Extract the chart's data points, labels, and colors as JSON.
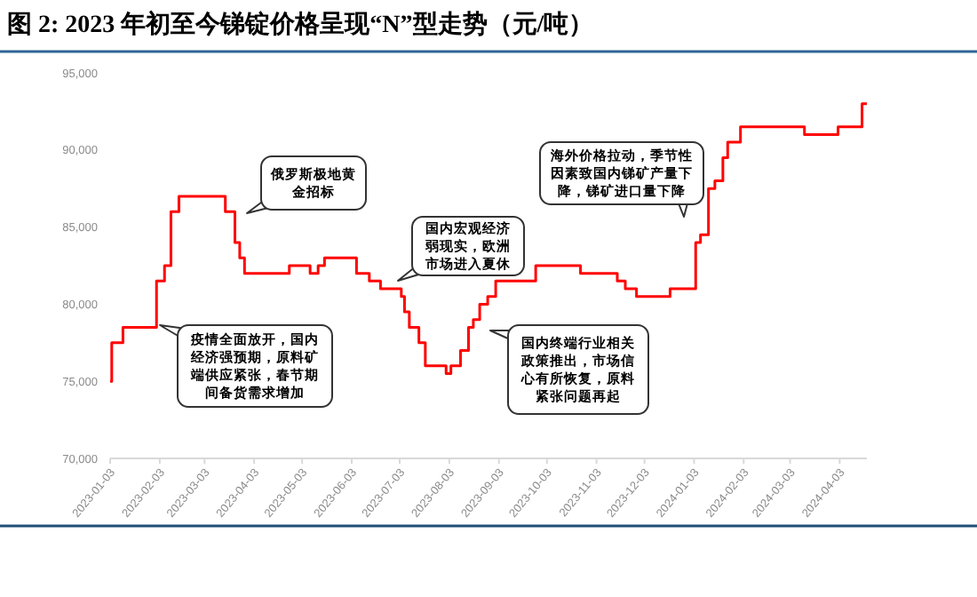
{
  "chart_data": {
    "type": "step",
    "title": "图 2: 2023 年初至今锑锭价格呈现“N”型走势（元/吨）",
    "x": [
      "2023-01-03",
      "2023-01-04",
      "2023-01-11",
      "2023-02-01",
      "2023-02-06",
      "2023-02-10",
      "2023-02-15",
      "2023-03-16",
      "2023-03-22",
      "2023-03-25",
      "2023-03-28",
      "2023-04-25",
      "2023-05-08",
      "2023-05-13",
      "2023-05-17",
      "2023-06-06",
      "2023-06-14",
      "2023-06-21",
      "2023-07-04",
      "2023-07-06",
      "2023-07-09",
      "2023-07-15",
      "2023-07-19",
      "2023-08-01",
      "2023-08-04",
      "2023-08-10",
      "2023-08-15",
      "2023-08-18",
      "2023-08-22",
      "2023-08-27",
      "2023-09-01",
      "2023-09-26",
      "2023-10-24",
      "2023-11-16",
      "2023-11-21",
      "2023-11-28",
      "2023-12-19",
      "2024-01-04",
      "2024-01-07",
      "2024-01-12",
      "2024-01-16",
      "2024-01-21",
      "2024-01-24",
      "2024-02-01",
      "2024-03-12",
      "2024-04-02",
      "2024-04-17",
      "2024-04-20"
    ],
    "series": [
      {
        "color": "#ff0000",
        "values": [
          75000,
          77500,
          78500,
          81500,
          82500,
          86000,
          87000,
          86000,
          84000,
          83000,
          82000,
          82500,
          82000,
          82500,
          83000,
          82000,
          81500,
          81000,
          80500,
          79500,
          78500,
          77500,
          76000,
          75500,
          76000,
          77000,
          78500,
          79000,
          80000,
          80500,
          81500,
          82500,
          82000,
          81500,
          81000,
          80500,
          81000,
          84000,
          84500,
          87500,
          88000,
          89500,
          90500,
          91500,
          91000,
          91500,
          93000,
          93000
        ]
      }
    ],
    "xlim": [
      "2023-01-03",
      "2024-04-20"
    ],
    "xticks": [
      {
        "value": "2023-01-03",
        "label": "2023-01-03"
      },
      {
        "value": "2023-02-03",
        "label": "2023-02-03"
      },
      {
        "value": "2023-03-03",
        "label": "2023-03-03"
      },
      {
        "value": "2023-04-03",
        "label": "2023-04-03"
      },
      {
        "value": "2023-05-03",
        "label": "2023-05-03"
      },
      {
        "value": "2023-06-03",
        "label": "2023-06-03"
      },
      {
        "value": "2023-07-03",
        "label": "2023-07-03"
      },
      {
        "value": "2023-08-03",
        "label": "2023-08-03"
      },
      {
        "value": "2023-09-03",
        "label": "2023-09-03"
      },
      {
        "value": "2023-10-03",
        "label": "2023-10-03"
      },
      {
        "value": "2023-11-03",
        "label": "2023-11-03"
      },
      {
        "value": "2023-12-03",
        "label": "2023-12-03"
      },
      {
        "value": "2024-01-03",
        "label": "2024-01-03"
      },
      {
        "value": "2024-02-03",
        "label": "2024-02-03"
      },
      {
        "value": "2024-03-03",
        "label": "2024-03-03"
      },
      {
        "value": "2024-04-03",
        "label": "2024-04-03"
      }
    ],
    "ylim": [
      70000,
      95000
    ],
    "yticks": [
      {
        "value": 70000,
        "label": "70,000"
      },
      {
        "value": 75000,
        "label": "75,000"
      },
      {
        "value": 80000,
        "label": "80,000"
      },
      {
        "value": 85000,
        "label": "85,000"
      },
      {
        "value": 90000,
        "label": "90,000"
      },
      {
        "value": 95000,
        "label": "95,000"
      }
    ],
    "grid": false,
    "marker": "none",
    "line_style": "solid",
    "annotations": [
      "疫情全面放开，国内经济强预期，原料矿端供应紧张，春节期间备货需求增加",
      "俄罗斯极地黄金招标",
      "国内宏观经济弱现实，欧洲市场进入夏休",
      "海外价格拉动，季节性因素致国内锑矿产量下降，锑矿进口量下降",
      "国内终端行业相关政策推出，市场信心有所恢复，原料紧张问题再起"
    ]
  }
}
